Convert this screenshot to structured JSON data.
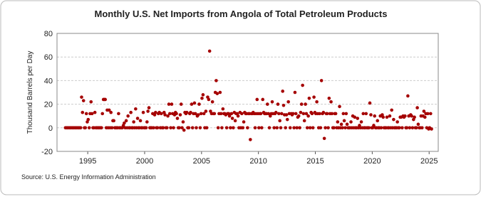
{
  "chart_data": {
    "type": "scatter",
    "title": "Monthly U.S. Net Imports from Angola of Total Petroleum Products",
    "y_label": "Thousand Barrels per Day",
    "source": "Source: U.S. Energy Information Administration",
    "xlim": [
      1992.3,
      2025.8
    ],
    "xticks": [
      1995,
      2000,
      2005,
      2010,
      2015,
      2020,
      2025
    ],
    "ylim": [
      -20,
      80
    ],
    "yticks": [
      -20,
      0,
      20,
      40,
      60,
      80
    ],
    "grid": true,
    "series": [
      {
        "color": "#a50000",
        "x": [
          1993.04,
          1993.13,
          1993.21,
          1993.29,
          1993.38,
          1993.46,
          1993.54,
          1993.63,
          1993.71,
          1993.79,
          1993.88,
          1993.96,
          1994.04,
          1994.13,
          1994.21,
          1994.29,
          1994.38,
          1994.46,
          1994.54,
          1994.63,
          1994.71,
          1994.79,
          1994.88,
          1994.96,
          1995.04,
          1995.13,
          1995.21,
          1995.29,
          1995.38,
          1995.46,
          1995.54,
          1995.63,
          1995.71,
          1995.79,
          1995.88,
          1995.96,
          1996.04,
          1996.13,
          1996.21,
          1996.29,
          1996.38,
          1996.46,
          1996.54,
          1996.63,
          1996.71,
          1996.79,
          1996.88,
          1996.96,
          1997.04,
          1997.13,
          1997.21,
          1997.29,
          1997.38,
          1997.46,
          1997.54,
          1997.63,
          1997.71,
          1997.79,
          1997.88,
          1997.96,
          1998.04,
          1998.13,
          1998.21,
          1998.29,
          1998.38,
          1998.46,
          1998.54,
          1998.63,
          1998.71,
          1998.79,
          1998.88,
          1998.96,
          1999.04,
          1999.13,
          1999.21,
          1999.29,
          1999.38,
          1999.46,
          1999.54,
          1999.63,
          1999.71,
          1999.79,
          1999.88,
          1999.96,
          2000.04,
          2000.13,
          2000.21,
          2000.29,
          2000.38,
          2000.46,
          2000.54,
          2000.63,
          2000.71,
          2000.79,
          2000.88,
          2000.96,
          2001.04,
          2001.13,
          2001.21,
          2001.29,
          2001.38,
          2001.46,
          2001.54,
          2001.63,
          2001.71,
          2001.79,
          2001.88,
          2001.96,
          2002.04,
          2002.13,
          2002.21,
          2002.29,
          2002.38,
          2002.46,
          2002.54,
          2002.63,
          2002.71,
          2002.79,
          2002.88,
          2002.96,
          2003.04,
          2003.13,
          2003.21,
          2003.29,
          2003.38,
          2003.46,
          2003.54,
          2003.63,
          2003.71,
          2003.79,
          2003.88,
          2003.96,
          2004.04,
          2004.13,
          2004.21,
          2004.29,
          2004.38,
          2004.46,
          2004.54,
          2004.63,
          2004.71,
          2004.79,
          2004.88,
          2004.96,
          2005.04,
          2005.13,
          2005.21,
          2005.29,
          2005.38,
          2005.46,
          2005.54,
          2005.63,
          2005.71,
          2005.79,
          2005.88,
          2005.96,
          2006.04,
          2006.13,
          2006.21,
          2006.29,
          2006.38,
          2006.46,
          2006.54,
          2006.63,
          2006.71,
          2006.79,
          2006.88,
          2006.96,
          2007.04,
          2007.13,
          2007.21,
          2007.29,
          2007.38,
          2007.46,
          2007.54,
          2007.63,
          2007.71,
          2007.79,
          2007.88,
          2007.96,
          2008.04,
          2008.13,
          2008.21,
          2008.29,
          2008.38,
          2008.46,
          2008.54,
          2008.63,
          2008.71,
          2008.79,
          2008.88,
          2008.96,
          2009.04,
          2009.13,
          2009.21,
          2009.29,
          2009.38,
          2009.46,
          2009.54,
          2009.63,
          2009.71,
          2009.79,
          2009.88,
          2009.96,
          2010.04,
          2010.13,
          2010.21,
          2010.29,
          2010.38,
          2010.46,
          2010.54,
          2010.63,
          2010.71,
          2010.79,
          2010.88,
          2010.96,
          2011.04,
          2011.13,
          2011.21,
          2011.29,
          2011.38,
          2011.46,
          2011.54,
          2011.63,
          2011.71,
          2011.79,
          2011.88,
          2011.96,
          2012.04,
          2012.13,
          2012.21,
          2012.29,
          2012.38,
          2012.46,
          2012.54,
          2012.63,
          2012.71,
          2012.79,
          2012.88,
          2012.96,
          2013.04,
          2013.13,
          2013.21,
          2013.29,
          2013.38,
          2013.46,
          2013.54,
          2013.63,
          2013.71,
          2013.79,
          2013.88,
          2013.96,
          2014.04,
          2014.13,
          2014.21,
          2014.29,
          2014.38,
          2014.46,
          2014.54,
          2014.63,
          2014.71,
          2014.79,
          2014.88,
          2014.96,
          2015.04,
          2015.13,
          2015.21,
          2015.29,
          2015.38,
          2015.46,
          2015.54,
          2015.63,
          2015.71,
          2015.79,
          2015.88,
          2015.96,
          2016.04,
          2016.13,
          2016.21,
          2016.29,
          2016.38,
          2016.46,
          2016.54,
          2016.63,
          2016.71,
          2016.79,
          2016.88,
          2016.96,
          2017.04,
          2017.13,
          2017.21,
          2017.29,
          2017.38,
          2017.46,
          2017.54,
          2017.63,
          2017.71,
          2017.79,
          2017.88,
          2017.96,
          2018.04,
          2018.13,
          2018.21,
          2018.29,
          2018.38,
          2018.46,
          2018.54,
          2018.63,
          2018.71,
          2018.79,
          2018.88,
          2018.96,
          2019.04,
          2019.13,
          2019.21,
          2019.29,
          2019.38,
          2019.46,
          2019.54,
          2019.63,
          2019.71,
          2019.79,
          2019.88,
          2019.96,
          2020.04,
          2020.13,
          2020.21,
          2020.29,
          2020.38,
          2020.46,
          2020.54,
          2020.63,
          2020.71,
          2020.79,
          2020.88,
          2020.96,
          2021.04,
          2021.13,
          2021.21,
          2021.29,
          2021.38,
          2021.46,
          2021.54,
          2021.63,
          2021.71,
          2021.79,
          2021.88,
          2021.96,
          2022.04,
          2022.13,
          2022.21,
          2022.29,
          2022.38,
          2022.46,
          2022.54,
          2022.63,
          2022.71,
          2022.79,
          2022.88,
          2022.96,
          2023.04,
          2023.13,
          2023.21,
          2023.29,
          2023.38,
          2023.46,
          2023.54,
          2023.63,
          2023.71,
          2023.79,
          2023.88,
          2023.96,
          2024.04,
          2024.13,
          2024.21,
          2024.29,
          2024.38,
          2024.46,
          2024.54,
          2024.63,
          2024.71,
          2024.79,
          2024.88,
          2024.96,
          2025.04,
          2025.13,
          2025.21
        ],
        "values": [
          0,
          0,
          0,
          0,
          0,
          0,
          0,
          0,
          0,
          0,
          0,
          0,
          0,
          0,
          0,
          0,
          0,
          26,
          13,
          23,
          0,
          0,
          12,
          5,
          7,
          0,
          12,
          22,
          12,
          0,
          0,
          13,
          0,
          0,
          0,
          0,
          0,
          0,
          0,
          12,
          24,
          24,
          24,
          0,
          15,
          0,
          15,
          0,
          13,
          0,
          6,
          6,
          0,
          0,
          0,
          0,
          12,
          0,
          0,
          0,
          0,
          2,
          4,
          0,
          6,
          0,
          10,
          0,
          0,
          13,
          0,
          0,
          5,
          0,
          16,
          0,
          8,
          0,
          0,
          6,
          0,
          0,
          13,
          0,
          0,
          0,
          5,
          14,
          17,
          0,
          0,
          0,
          12,
          0,
          11,
          13,
          0,
          0,
          12,
          13,
          0,
          12,
          0,
          0,
          13,
          11,
          0,
          0,
          10,
          20,
          12,
          0,
          20,
          12,
          0,
          11,
          13,
          12,
          8,
          0,
          0,
          11,
          20,
          0,
          5,
          -2,
          13,
          12,
          13,
          0,
          0,
          12,
          13,
          20,
          0,
          12,
          21,
          12,
          0,
          10,
          11,
          20,
          0,
          12,
          25,
          28,
          12,
          0,
          14,
          0,
          26,
          24,
          65,
          14,
          12,
          22,
          12,
          12,
          30,
          40,
          29,
          0,
          12,
          30,
          12,
          0,
          16,
          12,
          12,
          11,
          0,
          12,
          12,
          10,
          0,
          12,
          8,
          0,
          13,
          6,
          12,
          12,
          10,
          0,
          13,
          0,
          12,
          0,
          5,
          13,
          12,
          12,
          0,
          12,
          12,
          -10,
          12,
          12,
          13,
          12,
          0,
          12,
          24,
          12,
          0,
          12,
          12,
          0,
          24,
          13,
          12,
          12,
          12,
          20,
          12,
          0,
          10,
          12,
          22,
          12,
          0,
          12,
          13,
          0,
          20,
          12,
          6,
          0,
          12,
          31,
          19,
          11,
          0,
          11,
          7,
          22,
          12,
          0,
          12,
          11,
          12,
          0,
          30,
          12,
          0,
          9,
          10,
          0,
          13,
          20,
          36,
          12,
          6,
          20,
          12,
          0,
          10,
          25,
          0,
          13,
          12,
          0,
          26,
          13,
          12,
          22,
          12,
          0,
          12,
          0,
          40,
          12,
          13,
          -9,
          0,
          12,
          12,
          0,
          25,
          12,
          22,
          12,
          0,
          0,
          12,
          12,
          0,
          5,
          0,
          18,
          0,
          3,
          0,
          12,
          6,
          0,
          12,
          3,
          0,
          0,
          0,
          5,
          0,
          10,
          0,
          9,
          0,
          0,
          8,
          0,
          2,
          0,
          5,
          0,
          12,
          0,
          0,
          12,
          0,
          0,
          0,
          21,
          11,
          0,
          0,
          2,
          10,
          0,
          0,
          6,
          0,
          0,
          10,
          0,
          11,
          9,
          0,
          0,
          0,
          9,
          0,
          0,
          10,
          0,
          15,
          0,
          7,
          0,
          0,
          0,
          5,
          0,
          0,
          9,
          9,
          0,
          10,
          9,
          10,
          0,
          0,
          27,
          10,
          0,
          11,
          10,
          0,
          7,
          9,
          0,
          0,
          17,
          3,
          0,
          0,
          10,
          0,
          10,
          14,
          9,
          12,
          0,
          12,
          -1,
          0,
          12,
          -1
        ]
      }
    ]
  }
}
